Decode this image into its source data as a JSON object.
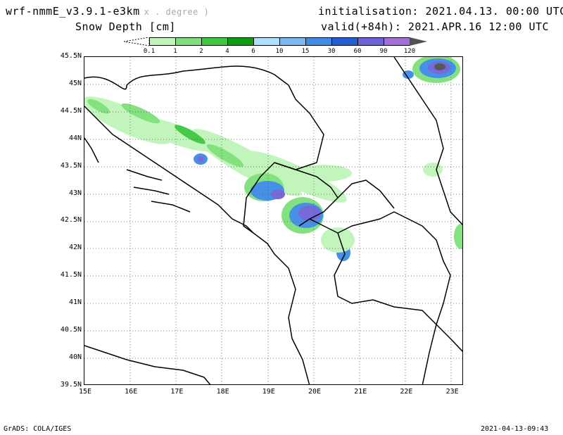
{
  "header": {
    "model": "wrf-nmmE_v3.9.1-e3km",
    "model_note": "x . degree )",
    "variable": "Snow Depth [cm]",
    "init_label": "initialisation:",
    "init_value": "2021.04.13.  00:00 UTC",
    "valid_label": "valid(+84h):",
    "valid_value": "2021.APR.16 12:00 UTC"
  },
  "legend": {
    "levels": [
      "0.1",
      "1",
      "2",
      "4",
      "6",
      "10",
      "15",
      "30",
      "60",
      "90",
      "120"
    ],
    "colors": [
      "#bff5b8",
      "#7ee07a",
      "#3ec83e",
      "#0d9d0d",
      "#aee0ff",
      "#79b8f0",
      "#3d8ce6",
      "#1f5fd1",
      "#6f62d6",
      "#a36ed8",
      "#505050"
    ]
  },
  "axes": {
    "lat_ticks": [
      "45.5N",
      "45N",
      "44.5N",
      "44N",
      "43.5N",
      "43N",
      "42.5N",
      "42N",
      "41.5N",
      "41N",
      "40.5N",
      "40N",
      "39.5N"
    ],
    "lon_ticks": [
      "15E",
      "16E",
      "17E",
      "18E",
      "19E",
      "20E",
      "21E",
      "22E",
      "23E"
    ]
  },
  "footer": {
    "left": "GrADS: COLA/IGES",
    "right": "2021-04-13-09:43"
  }
}
